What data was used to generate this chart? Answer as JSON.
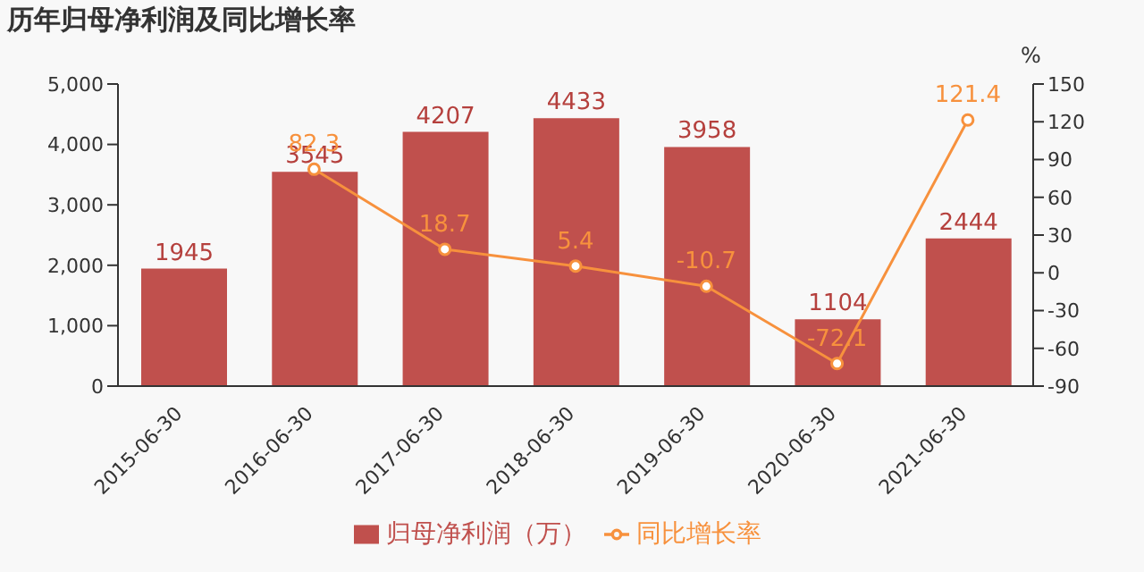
{
  "chart_data": {
    "type": "bar",
    "title": "历年归母净利润及同比增长率",
    "y2label": "%",
    "categories": [
      "2015-06-30",
      "2016-06-30",
      "2017-06-30",
      "2018-06-30",
      "2019-06-30",
      "2020-06-30",
      "2021-06-30"
    ],
    "series": [
      {
        "name": "归母净利润（万）",
        "color": "#c0504d",
        "values": [
          1945,
          3545,
          4207,
          4433,
          3958,
          1104,
          2444
        ]
      },
      {
        "name": "同比增长率",
        "type": "line",
        "axis": "y2",
        "color": "#f7913d",
        "values": [
          null,
          82.3,
          18.7,
          5.4,
          -10.7,
          -72.1,
          121.4
        ]
      }
    ],
    "ylim": [
      0,
      5000
    ],
    "yticks": [
      0,
      {
        "value": 1000,
        "label": "1,000"
      },
      {
        "value": 2000,
        "label": "2,000"
      },
      {
        "value": 3000,
        "label": "3,000"
      },
      {
        "value": 4000,
        "label": "4,000"
      },
      {
        "value": 5000,
        "label": "5,000"
      }
    ],
    "y2lim": [
      -90,
      150
    ],
    "y2ticks": [
      -90,
      -60,
      -30,
      0,
      30,
      60,
      90,
      120,
      150
    ],
    "data_labels": true,
    "legend": "bottom",
    "marker": "circle"
  }
}
